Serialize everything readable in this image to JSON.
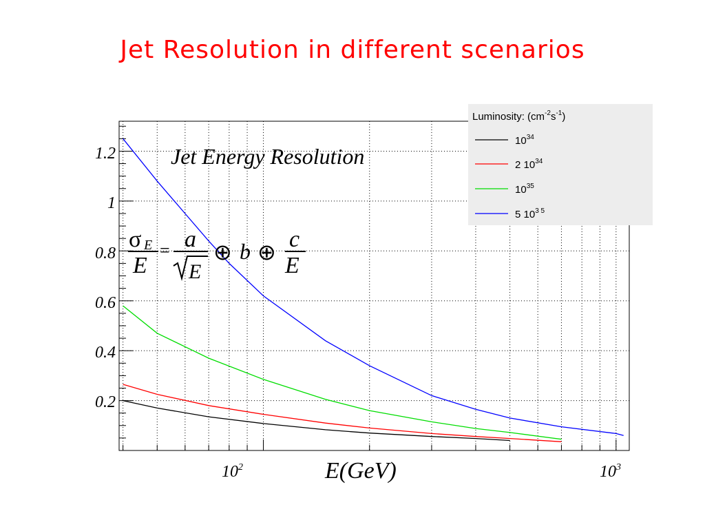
{
  "slide_title": "Jet Resolution in different scenarios",
  "chart_data": {
    "type": "line",
    "title": "Jet Energy Resolution",
    "formula": {
      "numerator_left": "σ",
      "numerator_left_sub": "E",
      "denominator_left": "E",
      "equals": "=",
      "a": "a",
      "sqrt_arg": "E",
      "oplus": "⊕",
      "b": "b",
      "c": "c",
      "c_den": "E"
    },
    "xlabel": "E(GeV)",
    "ylabel": "",
    "xscale": "log",
    "xlim": [
      39,
      1090
    ],
    "ylim": [
      0.0,
      1.32
    ],
    "x_tick_labels": [
      {
        "value": 100,
        "base": "10",
        "exp": "2"
      },
      {
        "value": 1000,
        "base": "10",
        "exp": "3"
      }
    ],
    "y_ticks": [
      {
        "value": 0.2,
        "label": "0.2"
      },
      {
        "value": 0.4,
        "label": "0.4"
      },
      {
        "value": 0.6,
        "label": "0.6"
      },
      {
        "value": 0.8,
        "label": "0.8"
      },
      {
        "value": 1.0,
        "label": "1"
      },
      {
        "value": 1.2,
        "label": "1.2"
      }
    ],
    "grid": true,
    "legend": {
      "title": "Luminosity: (cm",
      "title_exp1": "-2",
      "title_mid": "s",
      "title_exp2": "-1",
      "title_end": ")",
      "placement": "top-right",
      "entries": [
        {
          "base": "10",
          "exp": "34"
        },
        {
          "base": "2 10",
          "exp": "34"
        },
        {
          "base": "10",
          "exp": "35"
        },
        {
          "base": "5 10",
          "exp": "3 5"
        }
      ]
    },
    "series": [
      {
        "color": "#000000",
        "x": [
          40,
          50,
          70,
          100,
          150,
          200,
          300,
          400,
          500
        ],
        "y": [
          0.2,
          0.17,
          0.135,
          0.108,
          0.083,
          0.07,
          0.056,
          0.048,
          0.04
        ]
      },
      {
        "color": "#ff0000",
        "x": [
          40,
          50,
          70,
          100,
          150,
          200,
          300,
          400,
          500,
          700
        ],
        "y": [
          0.265,
          0.225,
          0.18,
          0.145,
          0.11,
          0.09,
          0.068,
          0.056,
          0.048,
          0.035
        ]
      },
      {
        "color": "#00dd00",
        "x": [
          40,
          50,
          70,
          100,
          150,
          200,
          300,
          400,
          500,
          700
        ],
        "y": [
          0.58,
          0.47,
          0.37,
          0.285,
          0.205,
          0.16,
          0.115,
          0.088,
          0.072,
          0.045
        ]
      },
      {
        "color": "#0000ff",
        "x": [
          40,
          50,
          60,
          70,
          80,
          100,
          150,
          200,
          300,
          400,
          500,
          700,
          1000,
          1050
        ],
        "y": [
          1.25,
          1.08,
          0.95,
          0.84,
          0.75,
          0.62,
          0.44,
          0.34,
          0.22,
          0.165,
          0.13,
          0.095,
          0.068,
          0.06
        ]
      }
    ]
  }
}
